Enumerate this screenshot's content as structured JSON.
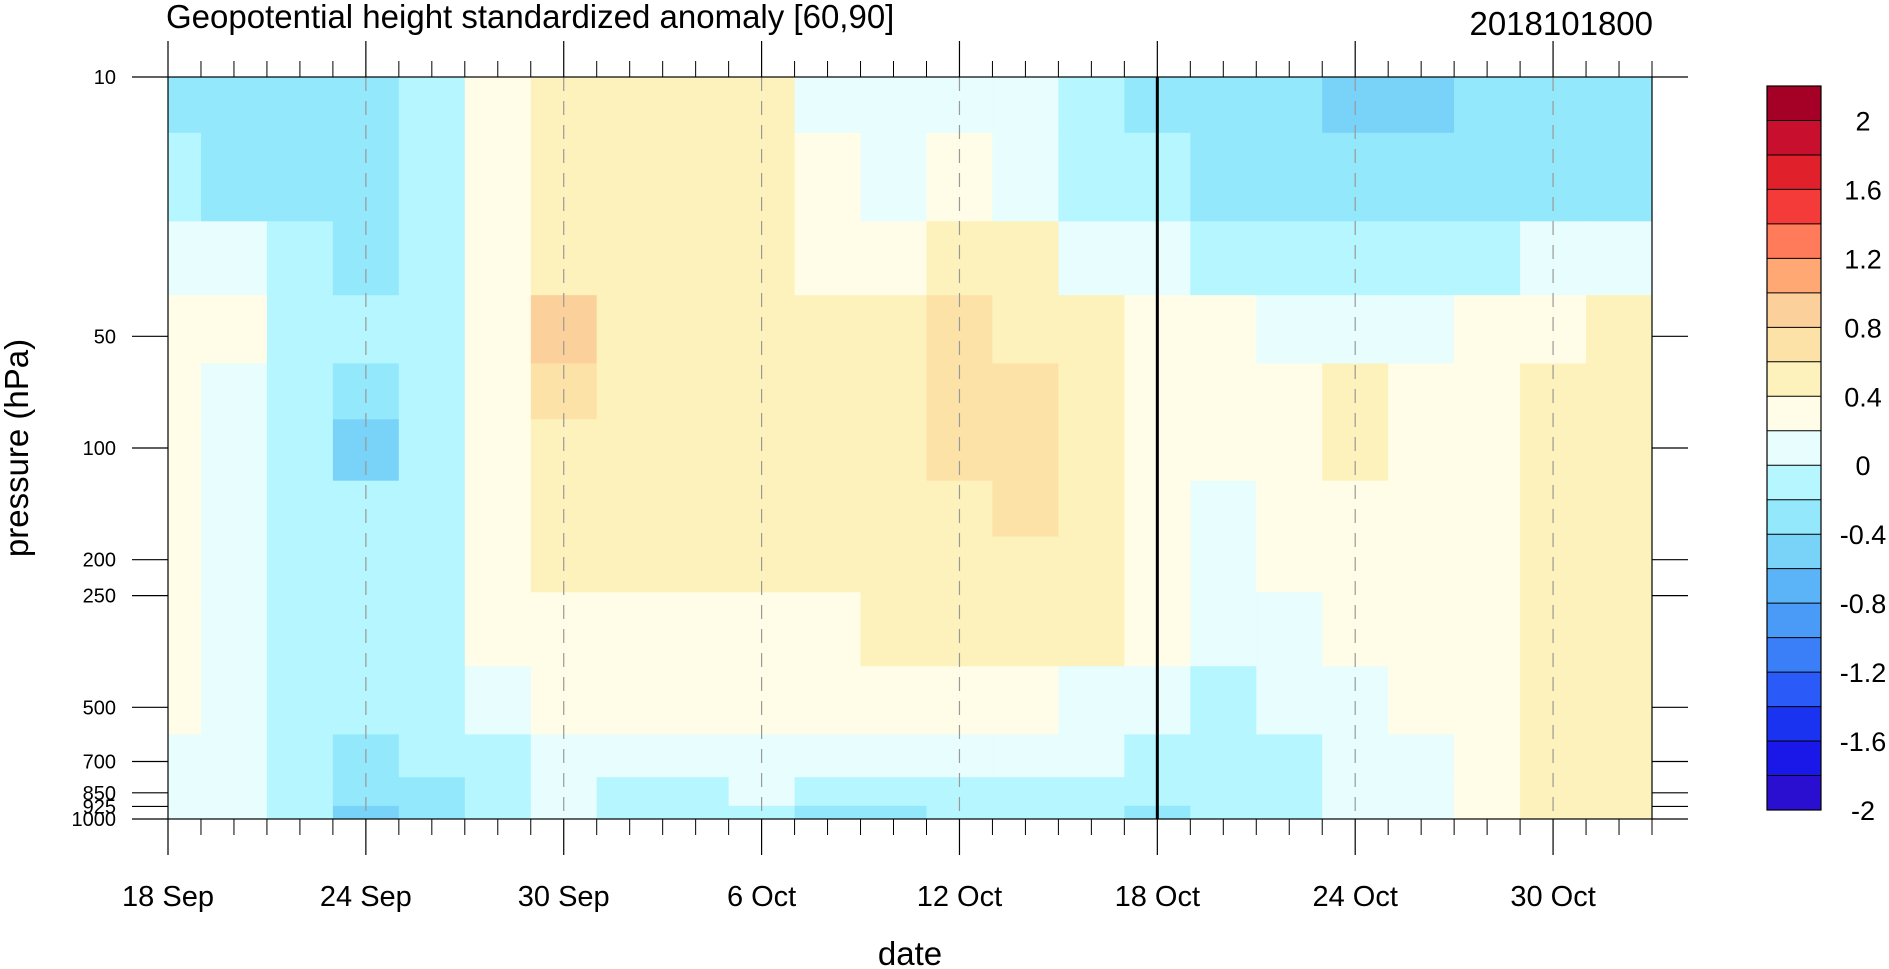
{
  "chart_data": {
    "type": "heatmap",
    "title": "Geopotential height standardized anomaly [60,90]",
    "run_label": "2018101800",
    "xlabel": "date",
    "ylabel": "pressure (hPa)",
    "x_range": [
      "2018-09-18",
      "2018-11-02"
    ],
    "x_ticks": [
      "18 Sep",
      "24 Sep",
      "30 Sep",
      "6 Oct",
      "12 Oct",
      "18 Oct",
      "24 Oct",
      "30 Oct"
    ],
    "y_scale": "log",
    "y_range": [
      1000,
      10
    ],
    "y_ticks": [
      "10",
      "50",
      "100",
      "200",
      "250",
      "500",
      "700",
      "850",
      "925",
      "1000"
    ],
    "grid": "dashed vertical lines at major date ticks",
    "forecast_start": "18 Oct",
    "colorbar": {
      "labels": [
        "2",
        "1.6",
        "1.2",
        "0.8",
        "0.4",
        "0",
        "-0.4",
        "-0.8",
        "-1.2",
        "-1.6",
        "-2"
      ],
      "colors": [
        "#a50026",
        "#c8102e",
        "#e0202a",
        "#f53a3a",
        "#ff7b5a",
        "#ffa874",
        "#fcd09a",
        "#fde2a8",
        "#fdf2bb",
        "#fffde7",
        "#e7fdfe",
        "#b6f6fe",
        "#93e8fb",
        "#79d2f8",
        "#5cb4f8",
        "#4a9af8",
        "#3b7ff8",
        "#2a5af8",
        "#1a33f0",
        "#1a18e8",
        "#2a0fd0"
      ]
    },
    "cells_dates": [
      "18 Sep",
      "20 Sep",
      "22 Sep",
      "24 Sep",
      "26 Sep",
      "28 Sep",
      "30 Sep",
      "2 Oct",
      "4 Oct",
      "6 Oct",
      "8 Oct",
      "10 Oct",
      "12 Oct",
      "14 Oct",
      "16 Oct",
      "18 Oct",
      "20 Oct",
      "22 Oct",
      "24 Oct",
      "26 Oct",
      "28 Oct",
      "30 Oct",
      "1 Nov"
    ],
    "cells_levels": [
      10,
      20,
      30,
      50,
      70,
      100,
      150,
      200,
      300,
      500,
      700,
      850,
      1000
    ],
    "cells_values": [
      [
        -0.4,
        -0.4,
        -0.4,
        -0.4,
        -0.1,
        0.2,
        0.4,
        0.4,
        0.4,
        0.4,
        0.1,
        0.1,
        0.1,
        0.1,
        -0.1,
        -0.4,
        -0.4,
        -0.4,
        -0.6,
        -0.6,
        -0.4,
        -0.4,
        -0.4
      ],
      [
        -0.1,
        -0.4,
        -0.4,
        -0.4,
        -0.1,
        0.2,
        0.4,
        0.4,
        0.4,
        0.4,
        0.2,
        0.1,
        0.2,
        0.1,
        -0.1,
        -0.1,
        -0.4,
        -0.4,
        -0.4,
        -0.4,
        -0.4,
        -0.4,
        -0.4
      ],
      [
        0.1,
        0.1,
        -0.1,
        -0.4,
        -0.1,
        0.3,
        0.5,
        0.6,
        0.6,
        0.6,
        0.3,
        0.3,
        0.5,
        0.4,
        0.1,
        0.1,
        -0.1,
        -0.1,
        -0.1,
        -0.1,
        -0.1,
        0.1,
        0.1
      ],
      [
        0.3,
        0.3,
        -0.1,
        -0.1,
        -0.1,
        0.3,
        0.9,
        0.6,
        0.6,
        0.6,
        0.5,
        0.5,
        0.7,
        0.6,
        0.5,
        0.3,
        0.2,
        0.1,
        0.1,
        0.1,
        0.2,
        0.3,
        0.4
      ],
      [
        0.3,
        0.1,
        -0.1,
        -0.4,
        -0.1,
        0.3,
        0.7,
        0.6,
        0.6,
        0.5,
        0.4,
        0.5,
        0.7,
        0.7,
        0.5,
        0.3,
        0.2,
        0.2,
        0.4,
        0.3,
        0.3,
        0.4,
        0.4
      ],
      [
        0.2,
        0.1,
        -0.1,
        -0.5,
        -0.1,
        0.3,
        0.5,
        0.6,
        0.6,
        0.5,
        0.4,
        0.5,
        0.7,
        0.7,
        0.5,
        0.3,
        0.2,
        0.3,
        0.4,
        0.3,
        0.3,
        0.5,
        0.6
      ],
      [
        0.2,
        0.1,
        -0.1,
        -0.1,
        -0.1,
        0.3,
        0.5,
        0.5,
        0.5,
        0.5,
        0.4,
        0.5,
        0.6,
        0.7,
        0.5,
        0.3,
        0.1,
        0.2,
        0.3,
        0.3,
        0.3,
        0.5,
        0.6
      ],
      [
        0.2,
        0.1,
        -0.1,
        -0.1,
        -0.1,
        0.3,
        0.5,
        0.5,
        0.5,
        0.5,
        0.4,
        0.4,
        0.6,
        0.6,
        0.5,
        0.2,
        0.1,
        0.2,
        0.3,
        0.3,
        0.3,
        0.5,
        0.5
      ],
      [
        0.2,
        0.1,
        -0.1,
        -0.1,
        -0.1,
        0.2,
        0.3,
        0.3,
        0.3,
        0.3,
        0.3,
        0.4,
        0.5,
        0.5,
        0.4,
        0.2,
        0.1,
        0.1,
        0.2,
        0.2,
        0.3,
        0.5,
        0.5
      ],
      [
        0.2,
        0.1,
        -0.1,
        -0.2,
        -0.1,
        0.1,
        0.2,
        0.2,
        0.2,
        0.2,
        0.2,
        0.2,
        0.2,
        0.2,
        0.1,
        0.1,
        -0.1,
        0.1,
        0.1,
        0.2,
        0.3,
        0.5,
        0.5
      ],
      [
        0.1,
        0.1,
        -0.1,
        -0.4,
        -0.2,
        -0.1,
        0.1,
        0.1,
        0.1,
        0.1,
        0.1,
        0.1,
        0.1,
        0.1,
        0.1,
        -0.1,
        -0.1,
        -0.1,
        0.1,
        0.1,
        0.3,
        0.5,
        0.5
      ],
      [
        0.1,
        0.1,
        -0.1,
        -0.4,
        -0.3,
        -0.1,
        0.1,
        -0.1,
        -0.1,
        0.1,
        -0.1,
        -0.1,
        -0.1,
        -0.1,
        -0.1,
        -0.1,
        -0.2,
        -0.1,
        0.1,
        0.1,
        0.3,
        0.5,
        0.5
      ],
      [
        0.1,
        0.1,
        -0.1,
        -0.5,
        -0.3,
        -0.1,
        0.1,
        -0.2,
        -0.2,
        -0.1,
        -0.3,
        -0.3,
        -0.2,
        -0.2,
        -0.2,
        -0.3,
        -0.2,
        -0.1,
        0.1,
        0.1,
        0.3,
        0.4,
        0.4
      ]
    ]
  }
}
